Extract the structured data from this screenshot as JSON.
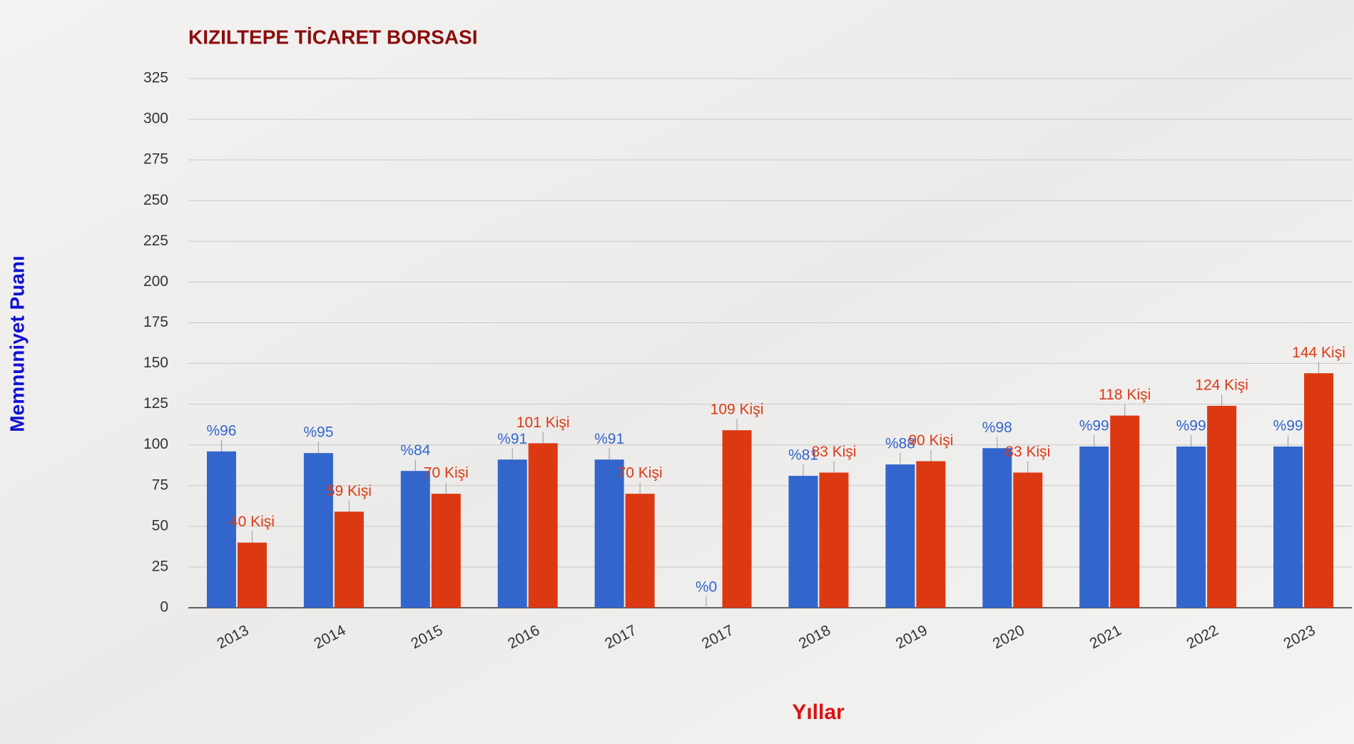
{
  "chart_data": {
    "type": "bar",
    "title": "KIZILTEPE TİCARET BORSASI",
    "y_label": "Memnuniyet Puanı",
    "x_label": "Yıllar",
    "categories": [
      "2013",
      "2014",
      "2015",
      "2016",
      "2017",
      "2017",
      "2018",
      "2019",
      "2020",
      "2021",
      "2022",
      "2023"
    ],
    "series": [
      {
        "color": "#3366cc",
        "values": [
          96,
          95,
          84,
          91,
          91,
          0,
          81,
          88,
          98,
          99,
          99,
          99
        ],
        "value_labels": [
          "%96",
          "%95",
          "%84",
          "%91",
          "%91",
          "%0",
          "%81",
          "%88",
          "%98",
          "%99",
          "%99",
          "%99"
        ]
      },
      {
        "color": "#dc3912",
        "values": [
          40,
          59,
          70,
          101,
          70,
          109,
          83,
          90,
          83,
          118,
          124,
          144
        ],
        "value_labels": [
          "40 Kişi",
          "59 Kişi",
          "70 Kişi",
          "101 Kişi",
          "70 Kişi",
          "109 Kişi",
          "83 Kişi",
          "90 Kişi",
          "83 Kişi",
          "118 Kişi",
          "124 Kişi",
          "144 Kişi"
        ]
      }
    ],
    "ylim": [
      0,
      325
    ],
    "yticks": [
      0,
      25,
      50,
      75,
      100,
      125,
      150,
      175,
      200,
      225,
      250,
      275,
      300,
      325
    ],
    "grid": true
  }
}
